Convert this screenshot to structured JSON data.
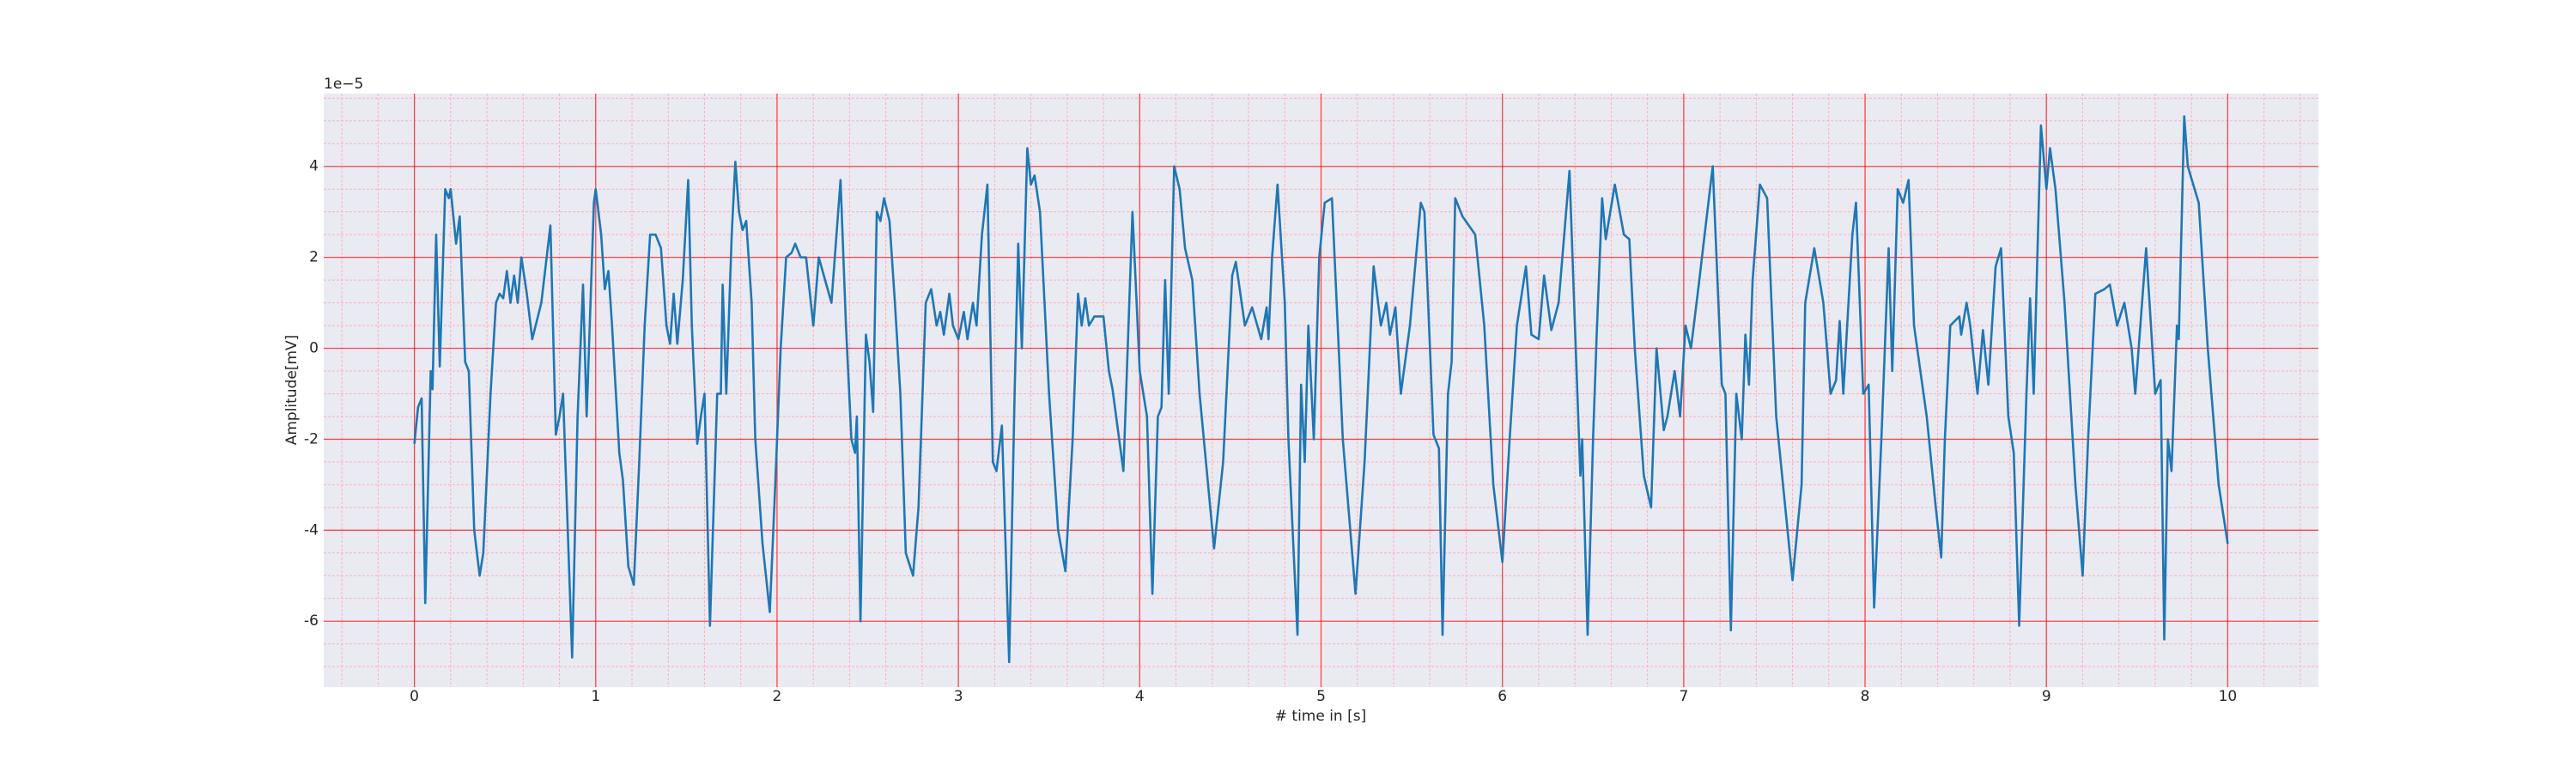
{
  "chart_data": {
    "type": "line",
    "xlabel": "# time in [s]",
    "ylabel": "Amplitude[mV]",
    "offset_text": "1e−5",
    "color": "#1f77b4",
    "background": "#eaeaf2",
    "grid": true,
    "grid_color": "#ff0000",
    "minor_grid_color": "#ffb0b8",
    "xlim": [
      -0.5,
      10.5
    ],
    "ylim": [
      -7.45,
      5.6
    ],
    "xticks": [
      0,
      1,
      2,
      3,
      4,
      5,
      6,
      7,
      8,
      9,
      10
    ],
    "yticks": [
      -6,
      -4,
      -2,
      0,
      2,
      4
    ],
    "xminorticks": [
      -0.4,
      -0.2,
      0.2,
      0.4,
      0.6,
      0.8,
      1.2,
      1.4,
      1.6,
      1.8,
      2.2,
      2.4,
      2.6,
      2.8,
      3.2,
      3.4,
      3.6,
      3.8,
      4.2,
      4.4,
      4.6,
      4.8,
      5.2,
      5.4,
      5.6,
      5.8,
      6.2,
      6.4,
      6.6,
      6.8,
      7.2,
      7.4,
      7.6,
      7.8,
      8.2,
      8.4,
      8.6,
      8.8,
      9.2,
      9.4,
      9.6,
      9.8,
      10.2,
      10.4
    ],
    "yminorticks": [
      -7,
      -6.5,
      -5.5,
      -5,
      -4.5,
      -3.5,
      -3,
      -2.5,
      -1.5,
      -1,
      -0.5,
      0.5,
      1,
      1.5,
      2.5,
      3,
      3.5,
      4.5,
      5,
      5.5
    ],
    "x": [
      0,
      0.02,
      0.04,
      0.06,
      0.09,
      0.1,
      0.12,
      0.14,
      0.17,
      0.19,
      0.2,
      0.23,
      0.25,
      0.28,
      0.3,
      0.33,
      0.36,
      0.38,
      0.42,
      0.45,
      0.47,
      0.49,
      0.51,
      0.53,
      0.55,
      0.57,
      0.59,
      0.62,
      0.65,
      0.7,
      0.75,
      0.78,
      0.8,
      0.82,
      0.87,
      0.9,
      0.93,
      0.95,
      0.99,
      1,
      1.03,
      1.05,
      1.07,
      1.09,
      1.13,
      1.15,
      1.18,
      1.21,
      1.24,
      1.27,
      1.3,
      1.33,
      1.36,
      1.39,
      1.41,
      1.43,
      1.45,
      1.48,
      1.51,
      1.53,
      1.56,
      1.58,
      1.6,
      1.63,
      1.67,
      1.69,
      1.7,
      1.72,
      1.75,
      1.77,
      1.79,
      1.81,
      1.83,
      1.86,
      1.88,
      1.92,
      1.96,
      1.99,
      2.02,
      2.05,
      2.08,
      2.1,
      2.13,
      2.16,
      2.2,
      2.23,
      2.3,
      2.35,
      2.38,
      2.41,
      2.43,
      2.44,
      2.46,
      2.49,
      2.51,
      2.53,
      2.55,
      2.57,
      2.59,
      2.62,
      2.65,
      2.68,
      2.71,
      2.75,
      2.78,
      2.82,
      2.85,
      2.88,
      2.9,
      2.92,
      2.95,
      2.97,
      3,
      3.03,
      3.05,
      3.08,
      3.1,
      3.13,
      3.16,
      3.19,
      3.21,
      3.24,
      3.28,
      3.31,
      3.33,
      3.35,
      3.38,
      3.4,
      3.42,
      3.45,
      3.5,
      3.55,
      3.59,
      3.63,
      3.66,
      3.68,
      3.7,
      3.72,
      3.75,
      3.8,
      3.83,
      3.85,
      3.91,
      3.96,
      4,
      4.04,
      4.07,
      4.1,
      4.12,
      4.14,
      4.16,
      4.19,
      4.22,
      4.25,
      4.29,
      4.33,
      4.41,
      4.46,
      4.51,
      4.53,
      4.58,
      4.62,
      4.67,
      4.7,
      4.71,
      4.73,
      4.76,
      4.8,
      4.82,
      4.87,
      4.89,
      4.91,
      4.93,
      4.96,
      4.99,
      5.02,
      5.06,
      5.12,
      5.19,
      5.24,
      5.29,
      5.33,
      5.36,
      5.38,
      5.41,
      5.44,
      5.49,
      5.55,
      5.57,
      5.62,
      5.65,
      5.67,
      5.7,
      5.72,
      5.74,
      5.78,
      5.85,
      5.9,
      5.95,
      6,
      6.04,
      6.08,
      6.13,
      6.16,
      6.2,
      6.23,
      6.27,
      6.31,
      6.37,
      6.4,
      6.43,
      6.44,
      6.47,
      6.5,
      6.52,
      6.55,
      6.57,
      6.62,
      6.67,
      6.7,
      6.73,
      6.78,
      6.82,
      6.85,
      6.89,
      6.91,
      6.95,
      6.98,
      7.01,
      7.04,
      7.08,
      7.13,
      7.16,
      7.21,
      7.23,
      7.26,
      7.29,
      7.32,
      7.34,
      7.36,
      7.38,
      7.42,
      7.46,
      7.51,
      7.6,
      7.65,
      7.67,
      7.72,
      7.77,
      7.81,
      7.84,
      7.86,
      7.88,
      7.93,
      7.95,
      7.99,
      8.02,
      8.05,
      8.09,
      8.13,
      8.15,
      8.18,
      8.21,
      8.24,
      8.27,
      8.34,
      8.39,
      8.42,
      8.44,
      8.47,
      8.52,
      8.53,
      8.56,
      8.58,
      8.62,
      8.65,
      8.68,
      8.72,
      8.75,
      8.79,
      8.82,
      8.85,
      8.89,
      8.91,
      8.93,
      8.95,
      8.97,
      9,
      9.02,
      9.05,
      9.1,
      9.16,
      9.2,
      9.23,
      9.27,
      9.32,
      9.35,
      9.39,
      9.43,
      9.47,
      9.49,
      9.55,
      9.6,
      9.63,
      9.65,
      9.67,
      9.69,
      9.72,
      9.73,
      9.76,
      9.78,
      9.84,
      9.89,
      9.95,
      10
    ],
    "values": [
      -2.1,
      -1.3,
      -1.1,
      -5.6,
      -0.5,
      -0.9,
      2.5,
      -0.4,
      3.5,
      3.3,
      3.5,
      2.3,
      2.9,
      -0.3,
      -0.5,
      -4.0,
      -5.0,
      -4.5,
      -1.0,
      1.0,
      1.2,
      1.1,
      1.7,
      1.0,
      1.6,
      1.0,
      2.0,
      1.2,
      0.2,
      1.0,
      2.7,
      -1.9,
      -1.5,
      -1.0,
      -6.8,
      -1.5,
      1.4,
      -1.5,
      3.2,
      3.5,
      2.5,
      1.3,
      1.7,
      0.5,
      -2.3,
      -2.9,
      -4.8,
      -5.2,
      -2.5,
      0.5,
      2.5,
      2.5,
      2.2,
      0.5,
      0.1,
      1.2,
      0.1,
      1.5,
      3.7,
      0.5,
      -2.1,
      -1.5,
      -1.0,
      -6.1,
      -1.0,
      -1.0,
      1.4,
      -1.0,
      2.5,
      4.1,
      3.0,
      2.6,
      2.8,
      1.0,
      -2.0,
      -4.3,
      -5.8,
      -3.0,
      0.0,
      2.0,
      2.1,
      2.3,
      2.0,
      2.0,
      0.5,
      2.0,
      1.0,
      3.7,
      0.5,
      -2.0,
      -2.3,
      -1.5,
      -6.0,
      0.3,
      -0.3,
      -1.4,
      3.0,
      2.8,
      3.3,
      2.8,
      1.0,
      -1.0,
      -4.5,
      -5.0,
      -3.5,
      1.0,
      1.3,
      0.5,
      0.8,
      0.3,
      1.2,
      0.5,
      0.2,
      0.8,
      0.2,
      1.0,
      0.5,
      2.5,
      3.6,
      -2.5,
      -2.7,
      -1.7,
      -6.9,
      -1.0,
      2.3,
      0.0,
      4.4,
      3.6,
      3.8,
      3.0,
      -1.0,
      -4.0,
      -4.9,
      -2.0,
      1.2,
      0.5,
      1.1,
      0.5,
      0.7,
      0.7,
      -0.5,
      -0.9,
      -2.7,
      3.0,
      -0.5,
      -1.5,
      -5.4,
      -1.5,
      -1.3,
      1.5,
      -1.0,
      4.0,
      3.5,
      2.2,
      1.5,
      -1.0,
      -4.4,
      -2.5,
      1.6,
      1.9,
      0.5,
      0.9,
      0.2,
      0.9,
      0.2,
      2.0,
      3.6,
      1.0,
      -2.0,
      -6.3,
      -0.8,
      -2.5,
      0.5,
      -2.0,
      2.0,
      3.2,
      3.3,
      -2.0,
      -5.4,
      -2.5,
      1.8,
      0.5,
      1.0,
      0.3,
      0.9,
      -1.0,
      0.5,
      3.2,
      3.0,
      -1.9,
      -2.2,
      -6.3,
      -1.0,
      -0.3,
      3.3,
      2.9,
      2.5,
      0.5,
      -3.0,
      -4.7,
      -2.0,
      0.5,
      1.8,
      0.3,
      0.2,
      1.6,
      0.4,
      1.0,
      3.9,
      0.5,
      -2.8,
      -2.0,
      -6.3,
      -2.0,
      0.3,
      3.3,
      2.4,
      3.6,
      2.5,
      2.4,
      0.0,
      -2.8,
      -3.5,
      0.0,
      -1.8,
      -1.5,
      -0.5,
      -1.5,
      0.5,
      0.0,
      1.3,
      3.0,
      4.0,
      -0.8,
      -1.0,
      -6.2,
      -1.0,
      -2.0,
      0.3,
      -0.8,
      1.5,
      3.6,
      3.3,
      -1.5,
      -5.1,
      -3.0,
      1.0,
      2.2,
      1.0,
      -1.0,
      -0.7,
      0.6,
      -1.0,
      2.5,
      3.2,
      -1.0,
      -0.8,
      -5.7,
      -2.0,
      2.2,
      -0.5,
      3.5,
      3.2,
      3.7,
      0.5,
      -1.5,
      -3.5,
      -4.6,
      -2.0,
      0.5,
      0.7,
      0.3,
      1.0,
      0.5,
      -1.0,
      0.4,
      -0.8,
      1.8,
      2.2,
      -1.5,
      -2.3,
      -6.1,
      -1.0,
      1.1,
      -1.0,
      2.0,
      4.9,
      3.5,
      4.4,
      3.5,
      1.0,
      -3.0,
      -5.0,
      -2.0,
      1.2,
      1.3,
      1.4,
      0.5,
      1.0,
      0.0,
      -1.0,
      2.2,
      -1.0,
      -0.7,
      -6.4,
      -2.0,
      -2.7,
      0.5,
      0.2,
      5.1,
      4.0,
      3.2,
      0.0,
      -3.0,
      -4.3
    ]
  }
}
